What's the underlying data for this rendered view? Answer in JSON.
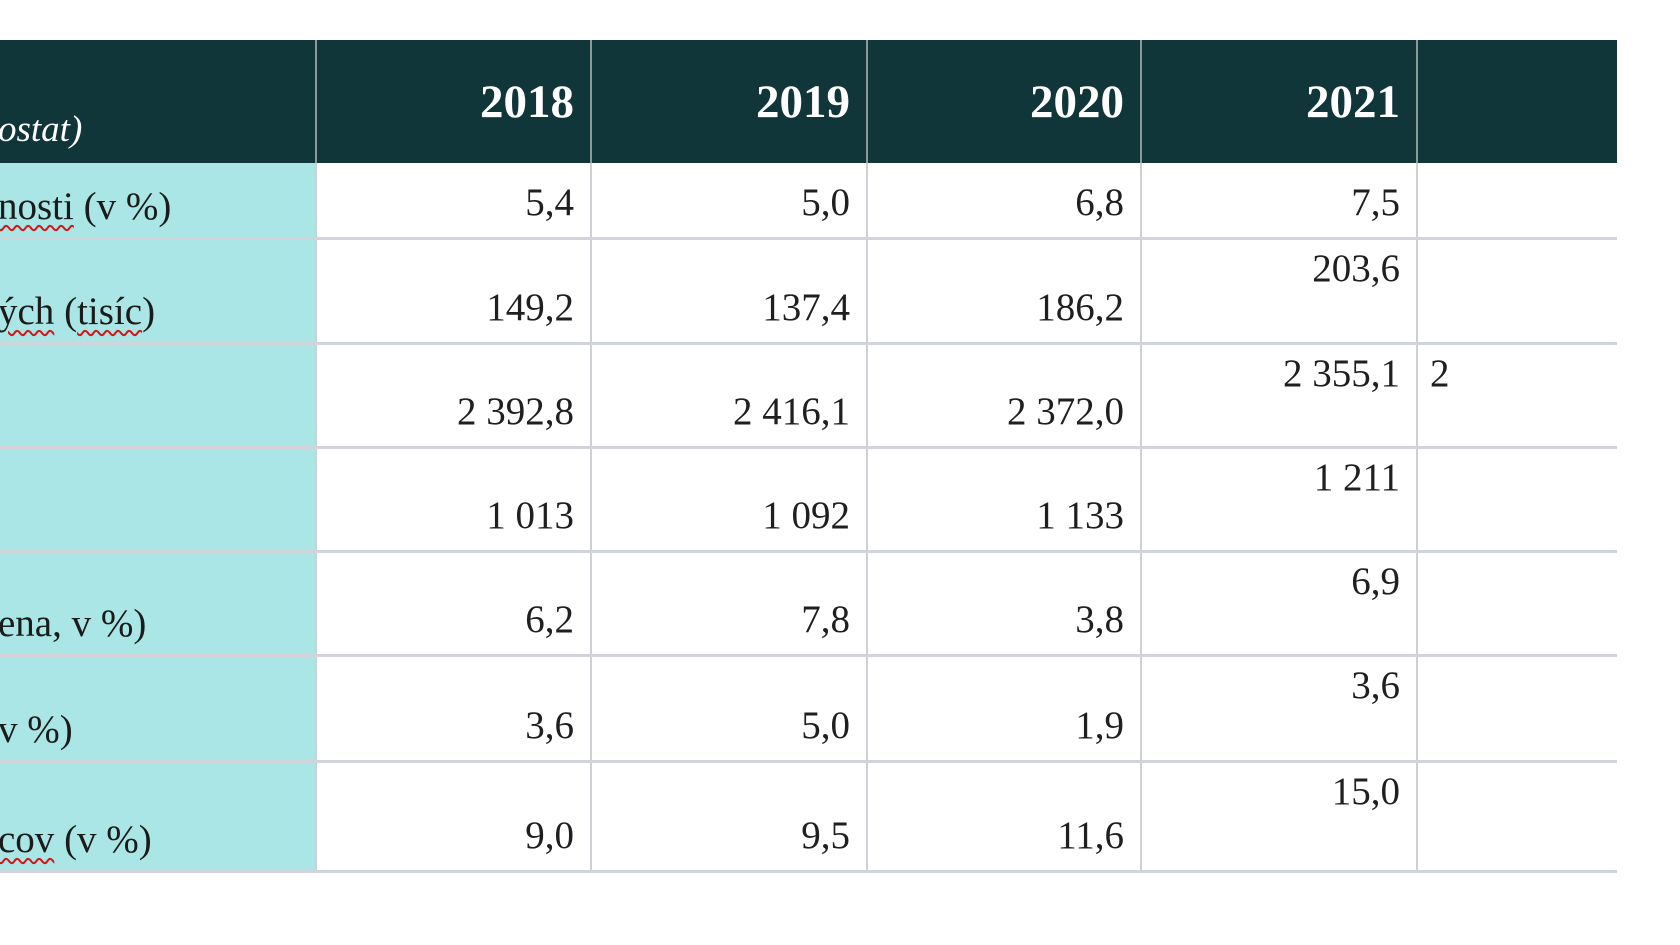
{
  "header": {
    "label": "ostat)",
    "years": [
      "2018",
      "2019",
      "2020",
      "2021",
      ""
    ]
  },
  "rows": [
    {
      "label_pre": "",
      "label_spell": "nosti",
      "label_post": " (v %)",
      "values": [
        "5,4",
        "5,0",
        "6,8",
        "7,5",
        ""
      ]
    },
    {
      "label_pre": "",
      "label_spell": "ých",
      "label_mid": " (",
      "label_spell2": "tisíc",
      "label_post": ")",
      "values": [
        "149,2",
        "137,4",
        "186,2",
        "203,6",
        ""
      ]
    },
    {
      "label_pre": "",
      "label_spell": "",
      "label_post": "",
      "values": [
        "2 392,8",
        "2 416,1",
        "2 372,0",
        "2 355,1",
        "2"
      ]
    },
    {
      "label_pre": "",
      "label_spell": "",
      "label_post": "",
      "values": [
        "1 013",
        "1 092",
        "1 133",
        "1 211",
        ""
      ]
    },
    {
      "label_pre": "ena, v %)",
      "label_spell": "",
      "label_post": "",
      "values": [
        "6,2",
        "7,8",
        "3,8",
        "6,9",
        ""
      ]
    },
    {
      "label_pre": " v %)",
      "label_spell": "",
      "label_post": "",
      "values": [
        "3,6",
        "5,0",
        "1,9",
        "3,6",
        ""
      ]
    },
    {
      "label_pre": "",
      "label_spell": "cov",
      "label_post": " (v %)",
      "values": [
        "9,0",
        "9,5",
        "11,6",
        "15,0",
        ""
      ]
    }
  ]
}
